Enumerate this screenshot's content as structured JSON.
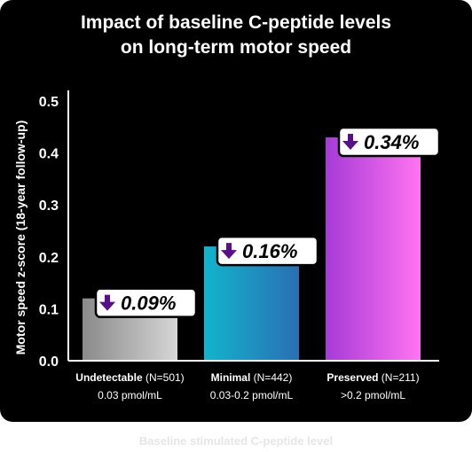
{
  "chart_data": {
    "type": "bar",
    "title_lines": [
      "Impact of baseline C-peptide levels",
      "on long-term motor speed"
    ],
    "ylabel": "Motor speed z-score (18-year follow-up)",
    "xlabel": "Baseline stimulated C-peptide level",
    "ylim": [
      0,
      0.5
    ],
    "yticks": [
      "0.0",
      "0.1",
      "0.2",
      "0.3",
      "0.4",
      "0.5"
    ],
    "ytick_values": [
      0,
      0.1,
      0.2,
      0.3,
      0.4,
      0.5
    ],
    "categories": [
      {
        "name": "Undetectable",
        "n": "(N=501)",
        "range": "0.03 pmol/mL"
      },
      {
        "name": "Minimal",
        "n": "(N=442)",
        "range": "0.03-0.2 pmol/mL"
      },
      {
        "name": "Preserved",
        "n": "(N=211)",
        "range": ">0.2 pmol/mL"
      }
    ],
    "values": [
      0.12,
      0.22,
      0.43
    ],
    "data_labels": [
      "0.09%",
      "0.16%",
      "0.34%"
    ],
    "label_direction": "down",
    "grid": false,
    "colors": {
      "bar_gradients": [
        [
          "#8a8a8a",
          "#d6d6d6"
        ],
        [
          "#12b4cc",
          "#2a6fb4"
        ],
        [
          "#a63ad8",
          "#ff74f0"
        ]
      ],
      "label_arrow": "#5a0f8a",
      "background": "#000000",
      "axis": "#ffffff"
    }
  }
}
